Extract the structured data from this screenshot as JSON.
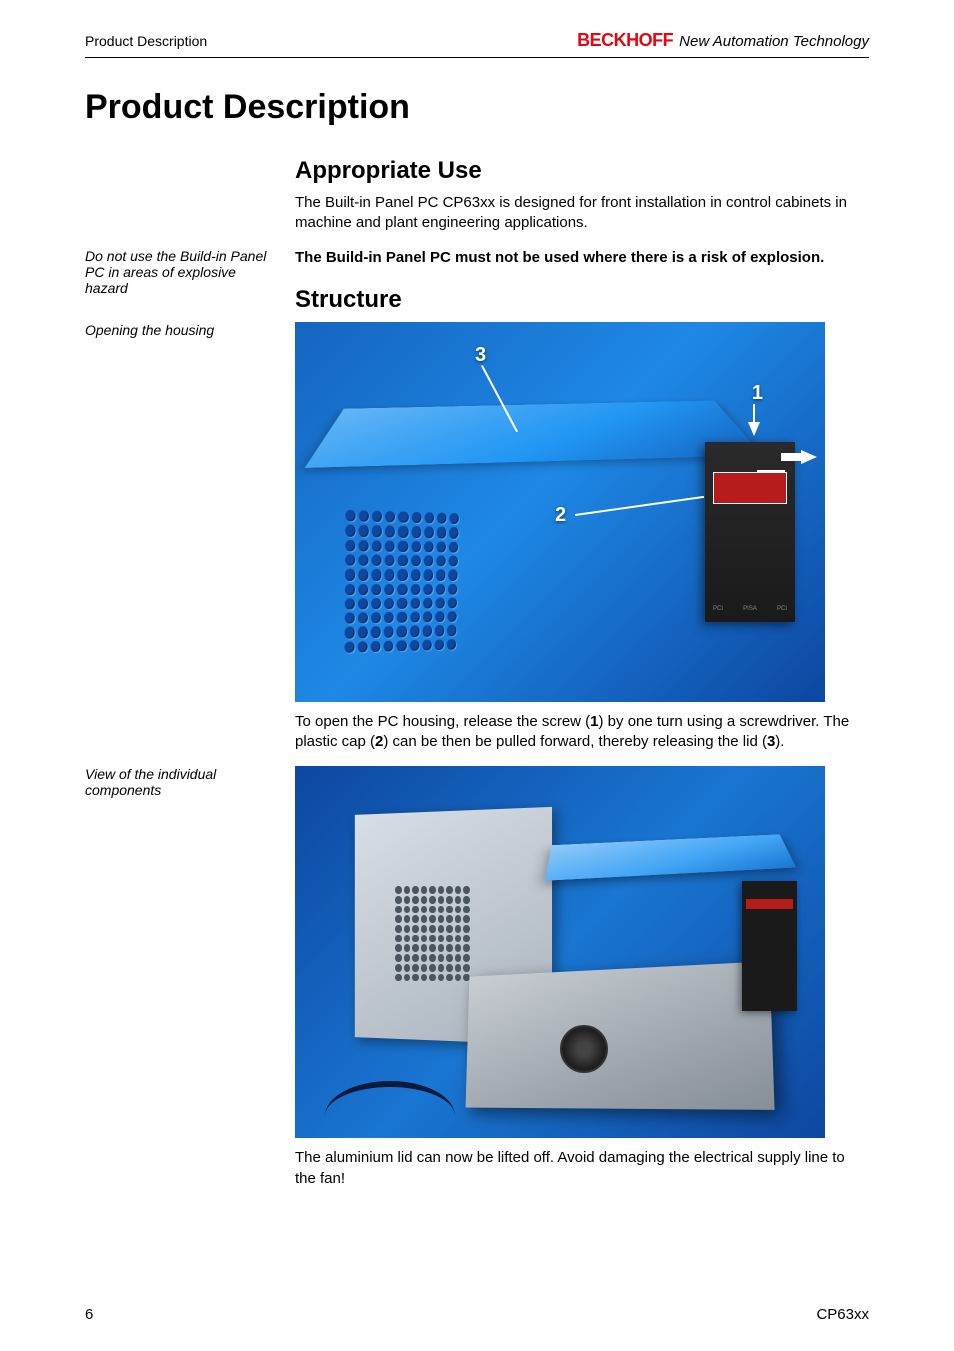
{
  "header": {
    "section": "Product Description",
    "brand": "BECKHOFF",
    "tagline": "New Automation Technology"
  },
  "title": "Product Description",
  "section1": {
    "heading": "Appropriate Use",
    "para1": "The Built-in Panel PC CP63xx is designed for front installation in control cabinets in machine and plant engineering applications.",
    "margin_note": "Do not use the Build-in Panel PC in areas of explosive hazard",
    "warning": "The Build-in Panel PC must not be used where there is a risk of explosion."
  },
  "section2": {
    "heading": "Structure",
    "margin_note1": "Opening the housing",
    "figure1": {
      "callouts": {
        "c1": "1",
        "c2": "2",
        "c3": "3"
      },
      "colors": {
        "bg_light": "#1e88e5",
        "bg_dark": "#0d47a1",
        "lid": "#2196f3",
        "module": "#1a1a1a",
        "red_label": "#b71c1c"
      }
    },
    "caption1_a": "To open the PC housing, release the screw (",
    "caption1_b": ") by one turn using a screwdriver. The plastic cap (",
    "caption1_c": ") can be then be pulled forward, thereby releasing the lid (",
    "caption1_d": ").",
    "ref1": "1",
    "ref2": "2",
    "ref3": "3",
    "margin_note2": "View of the individual components",
    "caption2": "The aluminium lid can now be lifted off. Avoid damaging the electrical supply line to the fan!"
  },
  "footer": {
    "page": "6",
    "doc": "CP63xx"
  }
}
